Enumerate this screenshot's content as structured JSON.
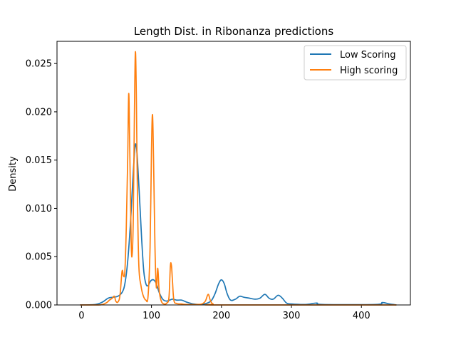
{
  "chart_data": {
    "type": "line",
    "title": "Length Dist. in Ribonanza predictions",
    "xlabel": "",
    "ylabel": "Density",
    "xlim": [
      -35,
      470
    ],
    "ylim": [
      0,
      0.0273
    ],
    "x_ticks": [
      0,
      100,
      200,
      300,
      400
    ],
    "x_tick_labels": [
      "0",
      "100",
      "200",
      "300",
      "400"
    ],
    "y_ticks": [
      0,
      0.005,
      0.01,
      0.015,
      0.02,
      0.025
    ],
    "y_tick_labels": [
      "0.000",
      "0.005",
      "0.010",
      "0.015",
      "0.020",
      "0.025"
    ],
    "grid": false,
    "legend_position": "top-right",
    "series": [
      {
        "name": "Low Scoring",
        "color": "#1f77b4",
        "points": [
          [
            -2,
            0
          ],
          [
            20,
            5e-05
          ],
          [
            30,
            0.0003
          ],
          [
            38,
            0.0007
          ],
          [
            45,
            0.0008
          ],
          [
            52,
            0.0009
          ],
          [
            58,
            0.0013
          ],
          [
            62,
            0.0022
          ],
          [
            66,
            0.0045
          ],
          [
            70,
            0.0085
          ],
          [
            73,
            0.0125
          ],
          [
            76,
            0.016
          ],
          [
            78,
            0.0166
          ],
          [
            80,
            0.015
          ],
          [
            83,
            0.011
          ],
          [
            86,
            0.0068
          ],
          [
            89,
            0.0035
          ],
          [
            92,
            0.0022
          ],
          [
            95,
            0.002
          ],
          [
            99,
            0.0025
          ],
          [
            103,
            0.0026
          ],
          [
            107,
            0.0022
          ],
          [
            111,
            0.0013
          ],
          [
            116,
            0.0006
          ],
          [
            121,
            0.0004
          ],
          [
            126,
            0.0005
          ],
          [
            130,
            0.0006
          ],
          [
            136,
            0.0005
          ],
          [
            143,
            0.0005
          ],
          [
            150,
            0.0003
          ],
          [
            160,
            0.0001
          ],
          [
            170,
            5e-05
          ],
          [
            180,
            0.0002
          ],
          [
            186,
            0.0005
          ],
          [
            191,
            0.0012
          ],
          [
            196,
            0.0022
          ],
          [
            200,
            0.0026
          ],
          [
            204,
            0.0022
          ],
          [
            208,
            0.0012
          ],
          [
            213,
            0.0005
          ],
          [
            220,
            0.0006
          ],
          [
            226,
            0.0009
          ],
          [
            232,
            0.0008
          ],
          [
            240,
            0.0007
          ],
          [
            248,
            0.0006
          ],
          [
            255,
            0.0007
          ],
          [
            262,
            0.0011
          ],
          [
            268,
            0.0007
          ],
          [
            274,
            0.0006
          ],
          [
            281,
            0.001
          ],
          [
            287,
            0.0007
          ],
          [
            293,
            0.0002
          ],
          [
            300,
            0.0001
          ],
          [
            320,
            5e-05
          ],
          [
            336,
            0.0002
          ],
          [
            345,
            5e-05
          ],
          [
            420,
            5e-05
          ],
          [
            430,
            0.00025
          ],
          [
            440,
            0.0001
          ],
          [
            450,
            0.0
          ]
        ]
      },
      {
        "name": "High scoring",
        "color": "#ff7f0e",
        "points": [
          [
            -2,
            0
          ],
          [
            25,
            0
          ],
          [
            35,
            0.0002
          ],
          [
            40,
            0.0005
          ],
          [
            44,
            0.0007
          ],
          [
            47,
            0.0009
          ],
          [
            49,
            0.0004
          ],
          [
            52,
            0.0003
          ],
          [
            55,
            0.001
          ],
          [
            58,
            0.0035
          ],
          [
            60,
            0.003
          ],
          [
            62,
            0.0035
          ],
          [
            64,
            0.008
          ],
          [
            66,
            0.015
          ],
          [
            67.5,
            0.0219
          ],
          [
            69,
            0.016
          ],
          [
            71,
            0.0065
          ],
          [
            72.5,
            0.0053
          ],
          [
            74,
            0.009
          ],
          [
            75.5,
            0.019
          ],
          [
            77,
            0.0262
          ],
          [
            78.5,
            0.021
          ],
          [
            80,
            0.011
          ],
          [
            82,
            0.004
          ],
          [
            85,
            0.002
          ],
          [
            88,
            0.001
          ],
          [
            92,
            0.0005
          ],
          [
            95,
            0.0008
          ],
          [
            98,
            0.006
          ],
          [
            100,
            0.016
          ],
          [
            101.5,
            0.0197
          ],
          [
            103,
            0.015
          ],
          [
            105,
            0.006
          ],
          [
            107,
            0.0018
          ],
          [
            109,
            0.0038
          ],
          [
            111,
            0.0015
          ],
          [
            114,
            0.0004
          ],
          [
            118,
            0.0001
          ],
          [
            122,
            0.0002
          ],
          [
            125,
            0.0008
          ],
          [
            127,
            0.004
          ],
          [
            128.5,
            0.0041
          ],
          [
            130,
            0.0025
          ],
          [
            132,
            0.0005
          ],
          [
            136,
            0.00015
          ],
          [
            143,
            0.0001
          ],
          [
            150,
            5e-05
          ],
          [
            165,
            5e-05
          ],
          [
            172,
            0.0001
          ],
          [
            177,
            0.0004
          ],
          [
            181,
            0.0011
          ],
          [
            184,
            0.0005
          ],
          [
            188,
            0.0001
          ],
          [
            200,
            0
          ],
          [
            450,
            0
          ]
        ]
      }
    ]
  }
}
